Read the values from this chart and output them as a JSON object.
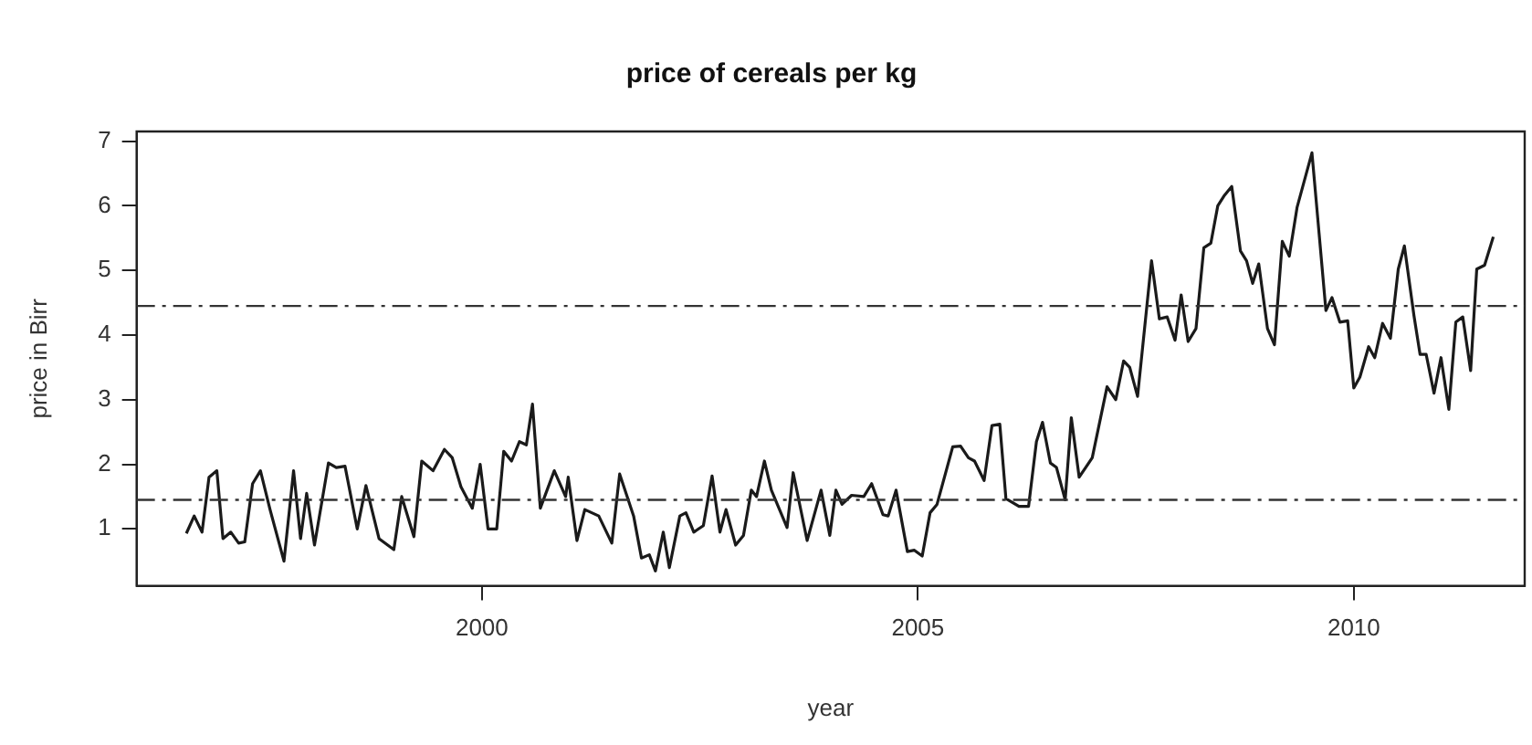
{
  "chart_data": {
    "type": "line",
    "title": "price of cereals per kg",
    "xlabel": "year",
    "ylabel": "price in Birr",
    "x": [
      1996.61,
      1996.7,
      1996.79,
      1996.87,
      1996.96,
      1997.03,
      1997.12,
      1997.21,
      1997.28,
      1997.37,
      1997.46,
      1997.57,
      1997.73,
      1997.84,
      1997.92,
      1997.99,
      1998.08,
      1998.24,
      1998.33,
      1998.43,
      1998.57,
      1998.67,
      1998.82,
      1998.99,
      1999.08,
      1999.22,
      1999.31,
      1999.44,
      1999.57,
      1999.66,
      1999.76,
      1999.89,
      1999.98,
      2000.07,
      2000.17,
      2000.25,
      2000.34,
      2000.43,
      2000.51,
      2000.58,
      2000.67,
      2000.83,
      2000.96,
      2000.99,
      2001.09,
      2001.18,
      2001.34,
      2001.49,
      2001.58,
      2001.74,
      2001.83,
      2001.92,
      2001.99,
      2002.08,
      2002.15,
      2002.27,
      2002.34,
      2002.43,
      2002.54,
      2002.64,
      2002.73,
      2002.8,
      2002.91,
      2003.0,
      2003.09,
      2003.15,
      2003.24,
      2003.32,
      2003.5,
      2003.57,
      2003.73,
      2003.89,
      2003.99,
      2004.06,
      2004.13,
      2004.24,
      2004.38,
      2004.47,
      2004.6,
      2004.66,
      2004.75,
      2004.88,
      2004.96,
      2005.05,
      2005.14,
      2005.22,
      2005.4,
      2005.49,
      2005.58,
      2005.65,
      2005.76,
      2005.85,
      2005.94,
      2006.01,
      2006.16,
      2006.27,
      2006.36,
      2006.43,
      2006.52,
      2006.59,
      2006.69,
      2006.76,
      2006.85,
      2007.0,
      2007.17,
      2007.27,
      2007.36,
      2007.43,
      2007.52,
      2007.68,
      2007.77,
      2007.86,
      2007.95,
      2008.02,
      2008.1,
      2008.19,
      2008.28,
      2008.36,
      2008.44,
      2008.51,
      2008.6,
      2008.7,
      2008.77,
      2008.84,
      2008.91,
      2009.01,
      2009.09,
      2009.18,
      2009.26,
      2009.35,
      2009.52,
      2009.68,
      2009.75,
      2009.84,
      2009.93,
      2010.0,
      2010.07,
      2010.17,
      2010.24,
      2010.33,
      2010.42,
      2010.51,
      2010.58,
      2010.69,
      2010.76,
      2010.83,
      2010.92,
      2011.0,
      2011.09,
      2011.17,
      2011.25,
      2011.34,
      2011.41,
      2011.5,
      2011.6
    ],
    "series": [
      {
        "color": "#1a1a1a",
        "values": [
          0.93,
          1.2,
          0.95,
          1.8,
          1.9,
          0.85,
          0.95,
          0.78,
          0.8,
          1.7,
          1.9,
          1.3,
          0.5,
          1.9,
          0.85,
          1.55,
          0.75,
          2.02,
          1.95,
          1.97,
          1.0,
          1.67,
          0.85,
          0.68,
          1.5,
          0.88,
          2.05,
          1.9,
          2.23,
          2.1,
          1.65,
          1.32,
          2.0,
          1.0,
          1.0,
          2.2,
          2.05,
          2.35,
          2.3,
          2.93,
          1.32,
          1.9,
          1.5,
          1.8,
          0.82,
          1.3,
          1.2,
          0.78,
          1.85,
          1.2,
          0.55,
          0.6,
          0.35,
          0.95,
          0.4,
          1.2,
          1.25,
          0.95,
          1.05,
          1.82,
          0.95,
          1.3,
          0.75,
          0.9,
          1.6,
          1.5,
          2.05,
          1.6,
          1.02,
          1.87,
          0.82,
          1.6,
          0.9,
          1.6,
          1.38,
          1.52,
          1.5,
          1.7,
          1.22,
          1.2,
          1.6,
          0.65,
          0.67,
          0.58,
          1.25,
          1.38,
          2.27,
          2.28,
          2.1,
          2.05,
          1.75,
          2.6,
          2.62,
          1.47,
          1.35,
          1.35,
          2.35,
          2.65,
          2.02,
          1.95,
          1.45,
          2.72,
          1.8,
          2.1,
          3.2,
          3.0,
          3.6,
          3.5,
          3.05,
          5.15,
          4.25,
          4.28,
          3.92,
          4.62,
          3.9,
          4.1,
          5.35,
          5.42,
          6.0,
          6.15,
          6.3,
          5.3,
          5.15,
          4.8,
          5.1,
          4.1,
          3.85,
          5.45,
          5.22,
          5.98,
          6.82,
          4.38,
          4.58,
          4.2,
          4.22,
          3.18,
          3.35,
          3.82,
          3.65,
          4.18,
          3.95,
          5.02,
          5.38,
          4.3,
          3.7,
          3.7,
          3.1,
          3.65,
          2.85,
          4.2,
          4.28,
          3.45,
          5.02,
          5.08,
          5.52
        ]
      }
    ],
    "xlim": [
      1996.04,
      2011.96
    ],
    "xticks": [
      2000,
      2005,
      2010
    ],
    "ylim": [
      0.12,
      7.15
    ],
    "yticks": [
      1,
      2,
      3,
      4,
      5,
      6,
      7
    ],
    "ref_lines": [
      {
        "axis": "y",
        "value": 4.45,
        "color": "#333333",
        "line_style": "dashed"
      },
      {
        "axis": "y",
        "value": 1.45,
        "color": "#333333",
        "line_style": "dashed"
      }
    ],
    "grid": false,
    "legend": false,
    "marker": "none",
    "line_style": "solid"
  }
}
